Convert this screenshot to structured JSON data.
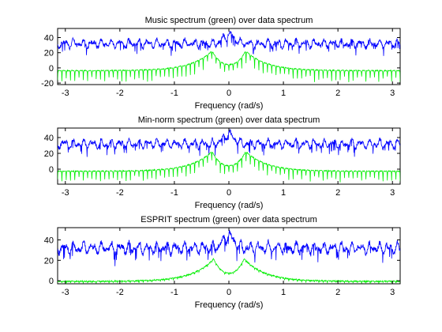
{
  "colors": {
    "data_spectrum": "#0000ff",
    "model_spectrum": "#00ee00",
    "axes": "#000000"
  },
  "chart_data": [
    {
      "type": "line",
      "title": "Music spectrum (green) over data spectrum",
      "xlabel": "Frequency (rad/s)",
      "ylabel": "",
      "xlim": [
        -3.1416,
        3.1416
      ],
      "ylim": [
        -22,
        52
      ],
      "xticks": [
        -3,
        -2,
        -1,
        0,
        1,
        2,
        3
      ],
      "yticks": [
        -20,
        0,
        20,
        40
      ],
      "grid": false,
      "series": [
        {
          "kind": "data",
          "color": "#0000ff",
          "base": 32,
          "peak_freq": 0.0,
          "peak": 50,
          "dip_depth": 12
        },
        {
          "kind": "model",
          "color": "#00ee00",
          "peaks": [
            -0.31,
            0.31
          ],
          "peak": 23,
          "floor": -3,
          "center": 5,
          "ripple_depth": 16
        }
      ]
    },
    {
      "type": "line",
      "title": "Min-norm spectrum (green) over data spectrum",
      "xlabel": "Frequency (rad/s)",
      "ylabel": "",
      "xlim": [
        -3.1416,
        3.1416
      ],
      "ylim": [
        -19,
        52
      ],
      "xticks": [
        -3,
        -2,
        -1,
        0,
        1,
        2,
        3
      ],
      "yticks": [
        0,
        20,
        40
      ],
      "grid": false,
      "series": [
        {
          "kind": "data",
          "color": "#0000ff",
          "base": 32,
          "peak_freq": 0.0,
          "peak": 50,
          "dip_depth": 12
        },
        {
          "kind": "model",
          "color": "#00ee00",
          "peaks": [
            -0.31,
            0.31
          ],
          "peak": 23,
          "floor": -2,
          "center": 5,
          "ripple_depth": 14
        }
      ]
    },
    {
      "type": "line",
      "title": "ESPRIT spectrum (green) over data spectrum",
      "xlabel": "Frequency (rad/s)",
      "ylabel": "",
      "xlim": [
        -3.1416,
        3.1416
      ],
      "ylim": [
        -3,
        52
      ],
      "xticks": [
        -3,
        -2,
        -1,
        0,
        1,
        2,
        3
      ],
      "yticks": [
        0,
        20,
        40
      ],
      "grid": false,
      "series": [
        {
          "kind": "data",
          "color": "#0000ff",
          "base": 32,
          "peak_freq": 0.0,
          "peak": 50,
          "dip_depth": 12
        },
        {
          "kind": "model",
          "color": "#00ee00",
          "peaks": [
            -0.28,
            0.28
          ],
          "peak": 22,
          "floor": 0,
          "center": 8,
          "ripple_depth": 2
        }
      ]
    }
  ]
}
